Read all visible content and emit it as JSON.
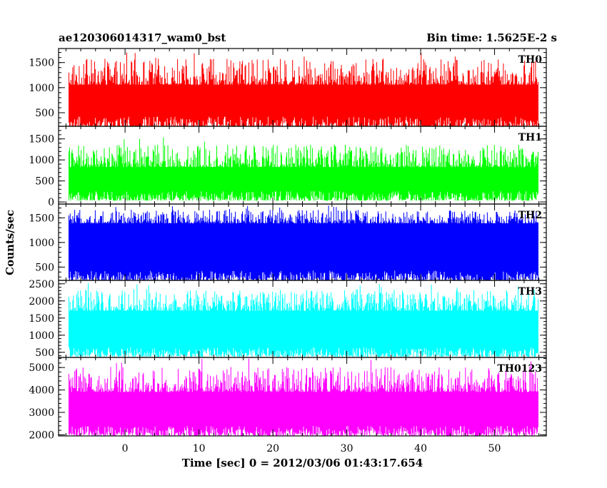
{
  "chart_data": {
    "type": "line",
    "title": "ae120306014317_wam0_bst",
    "subtitle": "Bin time: 1.5625E-2 s",
    "xlabel": "Time [sec] 0 = 2012/03/06 01:43:17.654",
    "ylabel": "Counts/sec",
    "xlim": [
      -9,
      57
    ],
    "data_x_range": [
      -7.6,
      55.9
    ],
    "x_ticks": [
      0,
      10,
      20,
      30,
      40,
      50
    ],
    "grid": false,
    "panels": [
      {
        "name": "TH0",
        "color": "#ff0000",
        "ylim": [
          230,
          1780
        ],
        "y_ticks": [
          500,
          1000,
          1500
        ],
        "band": {
          "floor_min": 180,
          "floor_max": 430,
          "top_min": 1050,
          "top_max": 1750,
          "core_min": 420,
          "core_max": 1060
        }
      },
      {
        "name": "TH1",
        "color": "#00ff00",
        "ylim": [
          -50,
          1800
        ],
        "y_ticks": [
          0,
          500,
          1000,
          1500
        ],
        "band": {
          "floor_min": 30,
          "floor_max": 260,
          "top_min": 820,
          "top_max": 1550,
          "core_min": 260,
          "core_max": 830
        }
      },
      {
        "name": "TH2",
        "color": "#0000ff",
        "ylim": [
          230,
          1780
        ],
        "y_ticks": [
          500,
          1000,
          1500
        ],
        "band": {
          "floor_min": 220,
          "floor_max": 430,
          "top_min": 1380,
          "top_max": 1760,
          "core_min": 430,
          "core_max": 1390
        }
      },
      {
        "name": "TH3",
        "color": "#00ffff",
        "ylim": [
          350,
          2600
        ],
        "y_ticks": [
          500,
          1000,
          1500,
          2000,
          2500
        ],
        "band": {
          "floor_min": 370,
          "floor_max": 650,
          "top_min": 1700,
          "top_max": 2560,
          "core_min": 650,
          "core_max": 1710
        }
      },
      {
        "name": "TH0123",
        "color": "#ff00ff",
        "ylim": [
          1950,
          5450
        ],
        "y_ticks": [
          2000,
          3000,
          4000,
          5000
        ],
        "band": {
          "floor_min": 1960,
          "floor_max": 2400,
          "top_min": 3900,
          "top_max": 5400,
          "core_min": 2400,
          "core_max": 3910
        }
      }
    ]
  }
}
